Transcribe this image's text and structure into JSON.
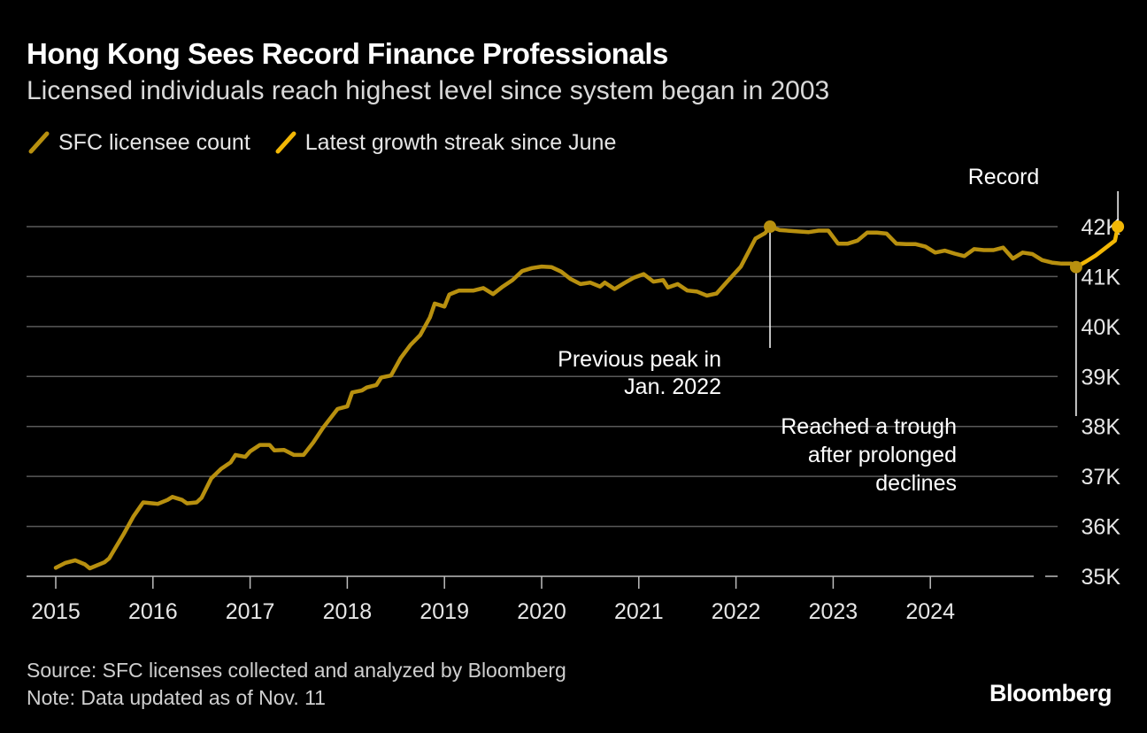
{
  "title": "Hong Kong Sees Record Finance Professionals",
  "subtitle": "Licensed individuals reach highest level since system began in 2003",
  "legend": [
    {
      "label": "SFC licensee count",
      "color": "#b8900f"
    },
    {
      "label": "Latest growth streak since June",
      "color": "#f2b705"
    }
  ],
  "footer": {
    "source": "Source: SFC licenses collected and analyzed by Bloomberg",
    "note": "Note: Data updated as of Nov. 11"
  },
  "logo": "Bloomberg",
  "chart_data": {
    "type": "line",
    "x_ticks": [
      "2015",
      "2016",
      "2017",
      "2018",
      "2019",
      "2020",
      "2021",
      "2022",
      "2023",
      "2024"
    ],
    "y_ticks": [
      "35K",
      "36K",
      "37K",
      "38K",
      "39K",
      "40K",
      "41K",
      "42K"
    ],
    "ylim": [
      35000,
      42000
    ],
    "grid": true,
    "legend_placement": "top-left",
    "series": [
      {
        "name": "SFC licensee count",
        "color": "#b8900f",
        "points": [
          [
            2015.0,
            35170
          ],
          [
            2015.1,
            35270
          ],
          [
            2015.2,
            35320
          ],
          [
            2015.3,
            35240
          ],
          [
            2015.35,
            35160
          ],
          [
            2015.5,
            35280
          ],
          [
            2015.55,
            35360
          ],
          [
            2015.7,
            35850
          ],
          [
            2015.8,
            36200
          ],
          [
            2015.9,
            36480
          ],
          [
            2016.0,
            36460
          ],
          [
            2016.05,
            36450
          ],
          [
            2016.15,
            36530
          ],
          [
            2016.2,
            36590
          ],
          [
            2016.3,
            36530
          ],
          [
            2016.35,
            36460
          ],
          [
            2016.45,
            36480
          ],
          [
            2016.5,
            36570
          ],
          [
            2016.6,
            36960
          ],
          [
            2016.7,
            37150
          ],
          [
            2016.8,
            37280
          ],
          [
            2016.85,
            37430
          ],
          [
            2016.95,
            37390
          ],
          [
            2017.0,
            37500
          ],
          [
            2017.1,
            37630
          ],
          [
            2017.2,
            37630
          ],
          [
            2017.25,
            37520
          ],
          [
            2017.35,
            37530
          ],
          [
            2017.45,
            37430
          ],
          [
            2017.55,
            37430
          ],
          [
            2017.65,
            37680
          ],
          [
            2017.75,
            37970
          ],
          [
            2017.9,
            38350
          ],
          [
            2018.0,
            38400
          ],
          [
            2018.05,
            38680
          ],
          [
            2018.15,
            38720
          ],
          [
            2018.2,
            38780
          ],
          [
            2018.3,
            38830
          ],
          [
            2018.35,
            38980
          ],
          [
            2018.45,
            39020
          ],
          [
            2018.55,
            39370
          ],
          [
            2018.65,
            39630
          ],
          [
            2018.75,
            39830
          ],
          [
            2018.85,
            40180
          ],
          [
            2018.9,
            40460
          ],
          [
            2019.0,
            40400
          ],
          [
            2019.05,
            40640
          ],
          [
            2019.15,
            40720
          ],
          [
            2019.3,
            40720
          ],
          [
            2019.4,
            40770
          ],
          [
            2019.5,
            40650
          ],
          [
            2019.6,
            40800
          ],
          [
            2019.7,
            40930
          ],
          [
            2019.8,
            41110
          ],
          [
            2019.9,
            41170
          ],
          [
            2020.0,
            41200
          ],
          [
            2020.1,
            41190
          ],
          [
            2020.2,
            41100
          ],
          [
            2020.3,
            40950
          ],
          [
            2020.4,
            40850
          ],
          [
            2020.5,
            40880
          ],
          [
            2020.6,
            40800
          ],
          [
            2020.65,
            40880
          ],
          [
            2020.75,
            40750
          ],
          [
            2020.85,
            40870
          ],
          [
            2020.95,
            40980
          ],
          [
            2021.05,
            41050
          ],
          [
            2021.15,
            40900
          ],
          [
            2021.25,
            40930
          ],
          [
            2021.3,
            40780
          ],
          [
            2021.4,
            40850
          ],
          [
            2021.5,
            40720
          ],
          [
            2021.6,
            40700
          ],
          [
            2021.7,
            40620
          ],
          [
            2021.8,
            40660
          ],
          [
            2021.9,
            40880
          ],
          [
            2022.05,
            41200
          ],
          [
            2022.2,
            41760
          ],
          [
            2022.3,
            41870
          ],
          [
            2022.35,
            42000
          ]
        ]
      },
      {
        "name": "SFC licensee count (continued)",
        "color": "#b8900f",
        "points": [
          [
            2022.35,
            42000
          ],
          [
            2022.45,
            41930
          ],
          [
            2022.6,
            41910
          ],
          [
            2022.75,
            41890
          ],
          [
            2022.85,
            41920
          ],
          [
            2022.95,
            41920
          ],
          [
            2023.05,
            41660
          ],
          [
            2023.15,
            41660
          ],
          [
            2023.25,
            41720
          ],
          [
            2023.35,
            41880
          ],
          [
            2023.45,
            41880
          ],
          [
            2023.55,
            41860
          ],
          [
            2023.65,
            41660
          ],
          [
            2023.75,
            41650
          ],
          [
            2023.85,
            41650
          ],
          [
            2023.95,
            41600
          ],
          [
            2024.05,
            41480
          ],
          [
            2024.15,
            41520
          ],
          [
            2024.25,
            41460
          ],
          [
            2024.35,
            41410
          ],
          [
            2024.45,
            41550
          ],
          [
            2024.55,
            41530
          ],
          [
            2024.65,
            41530
          ],
          [
            2024.75,
            41580
          ],
          [
            2024.85,
            41360
          ],
          [
            2024.95,
            41480
          ],
          [
            2025.05,
            41450
          ],
          [
            2025.15,
            41330
          ],
          [
            2025.25,
            41280
          ],
          [
            2025.35,
            41260
          ],
          [
            2025.45,
            41260
          ],
          [
            2025.5,
            41190
          ]
        ]
      },
      {
        "name": "Latest growth streak since June",
        "color": "#f2b705",
        "points": [
          [
            2025.5,
            41190
          ],
          [
            2025.6,
            41300
          ],
          [
            2025.7,
            41420
          ],
          [
            2025.8,
            41570
          ],
          [
            2025.9,
            41720
          ],
          [
            2025.93,
            42000
          ]
        ]
      }
    ],
    "annotations": [
      {
        "text": [
          "Previous peak in",
          "Jan. 2022"
        ],
        "x": 2022.35,
        "y": 42000
      },
      {
        "text": [
          "Reached a trough",
          "after prolonged",
          "declines"
        ],
        "x": 2025.5,
        "y": 41190
      },
      {
        "text": [
          "Record"
        ],
        "x": 2025.93,
        "y": 42000
      }
    ]
  }
}
